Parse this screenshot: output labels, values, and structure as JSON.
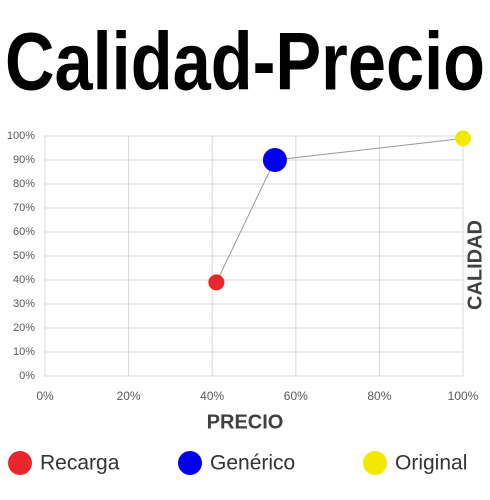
{
  "chart_data": {
    "type": "scatter",
    "title": "Calidad-Precio",
    "xlabel": "PRECIO",
    "ylabel": "CALIDAD",
    "series": [
      {
        "name": "Recarga",
        "color": "#e8262c",
        "x": 41,
        "y": 39,
        "marker_size": 8
      },
      {
        "name": "Genérico",
        "color": "#0000ee",
        "x": 55,
        "y": 90,
        "marker_size": 12
      },
      {
        "name": "Original",
        "color": "#f5e800",
        "x": 100,
        "y": 99,
        "marker_size": 8
      }
    ],
    "connect": true,
    "line_color": "#999999",
    "xlim": [
      0,
      100
    ],
    "ylim": [
      0,
      100
    ],
    "xticks": [
      {
        "value": 0,
        "label": "0%"
      },
      {
        "value": 20,
        "label": "20%"
      },
      {
        "value": 40,
        "label": "40%"
      },
      {
        "value": 60,
        "label": "60%"
      },
      {
        "value": 80,
        "label": "80%"
      },
      {
        "value": 100,
        "label": "100%"
      }
    ],
    "yticks": [
      {
        "value": 0,
        "label": "0%"
      },
      {
        "value": 10,
        "label": "10%"
      },
      {
        "value": 20,
        "label": "20%"
      },
      {
        "value": 30,
        "label": "30%"
      },
      {
        "value": 40,
        "label": "40%"
      },
      {
        "value": 50,
        "label": "50%"
      },
      {
        "value": 60,
        "label": "60%"
      },
      {
        "value": 70,
        "label": "70%"
      },
      {
        "value": 80,
        "label": "80%"
      },
      {
        "value": 90,
        "label": "90%"
      },
      {
        "value": 100,
        "label": "100%"
      }
    ],
    "grid": true
  }
}
